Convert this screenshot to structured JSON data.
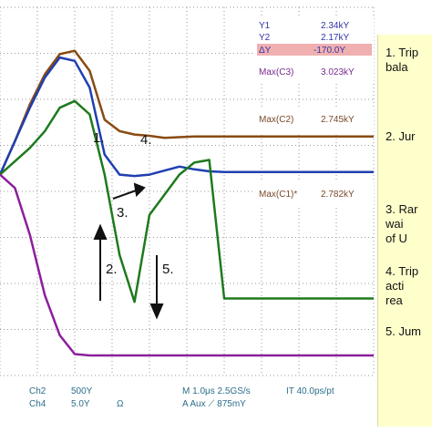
{
  "chart_data": {
    "type": "line",
    "x": [
      0,
      2,
      4,
      6,
      8,
      10,
      12,
      14,
      16,
      18,
      20,
      22,
      24,
      26,
      28,
      30,
      32,
      34,
      36,
      38,
      40,
      42,
      44,
      46,
      48,
      50
    ],
    "series": [
      {
        "color": "#8a4a12",
        "values": [
          0.4,
          0.9,
          1.45,
          1.9,
          2.2,
          2.25,
          1.95,
          1.22,
          1.05,
          1.0,
          0.98,
          0.95,
          0.96,
          0.97,
          0.97,
          0.97,
          0.97,
          0.97,
          0.97,
          0.97,
          0.97,
          0.97,
          0.97,
          0.97,
          0.97,
          0.97
        ]
      },
      {
        "color": "#1f3fb0",
        "values": [
          0.4,
          0.9,
          1.4,
          1.85,
          2.15,
          2.1,
          1.7,
          0.7,
          0.4,
          0.38,
          0.4,
          0.46,
          0.52,
          0.48,
          0.45,
          0.44,
          0.44,
          0.44,
          0.44,
          0.44,
          0.44,
          0.44,
          0.44,
          0.44,
          0.44,
          0.44
        ]
      },
      {
        "color": "#1e7a1e",
        "values": [
          0.4,
          0.6,
          0.8,
          1.05,
          1.4,
          1.5,
          1.3,
          0.4,
          -0.8,
          -1.5,
          -0.2,
          0.1,
          0.4,
          0.58,
          0.62,
          -1.45,
          -1.45,
          -1.45,
          -1.45,
          -1.45,
          -1.45,
          -1.45,
          -1.45,
          -1.45,
          -1.45,
          -1.45
        ]
      },
      {
        "color": "#8c1f9c",
        "values": [
          0.4,
          0.2,
          -0.5,
          -1.4,
          -2.0,
          -2.28,
          -2.3,
          -2.3,
          -2.3,
          -2.3,
          -2.3,
          -2.3,
          -2.3,
          -2.3,
          -2.3,
          -2.3,
          -2.3,
          -2.3,
          -2.3,
          -2.3,
          -2.3,
          -2.3,
          -2.3,
          -2.3,
          -2.3,
          -2.3
        ]
      }
    ],
    "ylim": [
      -2.6,
      2.9
    ],
    "grid": true
  },
  "readouts": {
    "y1": "Y1",
    "y1_val": "2.34kY",
    "y2": "Y2",
    "y2_val": "2.17kY",
    "dy": "ΔY",
    "dy_val": "-170.0Y",
    "max_c3": "Max(C3)",
    "max_c3_val": "3.023kY",
    "max_c2": "Max(C2)",
    "max_c2_val": "2.745kY",
    "max_c1": "Max(C1)*",
    "max_c1_val": "2.782kY"
  },
  "scope_footer": {
    "ch2": "Ch2",
    "ch2_val": "500Y",
    "ch4": "Ch4",
    "ch4_val": "5.0Y",
    "ohm": "Ω",
    "timebase": "M 1.0μs 2.5GS/s",
    "sample": "IT 40.0ps/pt",
    "trigger": "A  Aux  ⟋  875mY"
  },
  "markers": {
    "m1": "1.",
    "m2": "2.",
    "m3": "3.",
    "m4": "4.",
    "m5": "5."
  },
  "notes": [
    {
      "text": "1. Trip\n   bala"
    },
    {
      "text": "2.  Jur"
    },
    {
      "text": "3.  Rar\n    wai\n    of U"
    },
    {
      "text": "4. Trip\n    acti\n    rea"
    },
    {
      "text": "5.  Jum"
    }
  ]
}
